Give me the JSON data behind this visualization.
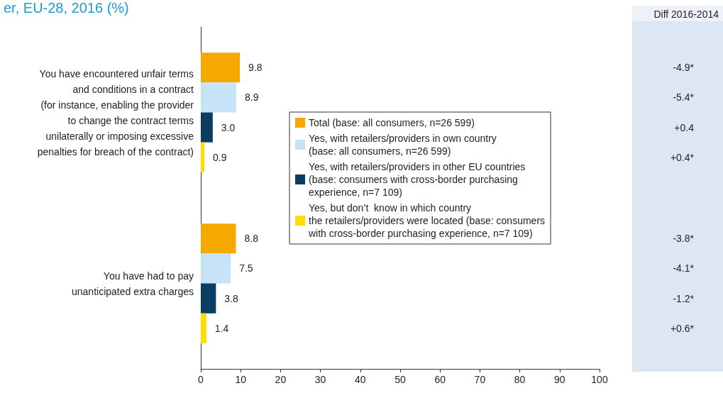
{
  "chart_data": {
    "type": "bar",
    "orientation": "horizontal",
    "title": "er, EU-28, 2016 (%)",
    "categories": [
      "You have encountered unfair terms\nand conditions in a contract\n(for instance, enabling the provider\nto change the contract terms\nunilaterally or imposing excessive\npenalties for breach of the contract)",
      "You have had to pay\nunanticipated extra charges"
    ],
    "series": [
      {
        "name": "Total (base: all consumers, n=26 599)",
        "color": "#f5a800",
        "values": [
          9.8,
          8.8
        ],
        "value_labels": [
          "9.8",
          "8.8"
        ]
      },
      {
        "name": "Yes, with retailers/providers in own country\n(base: all consumers, n=26 599)",
        "color": "#c6e3f7",
        "values": [
          8.9,
          7.5
        ],
        "value_labels": [
          "8.9",
          "7.5"
        ]
      },
      {
        "name": "Yes, with retailers/providers in other EU countries\n(base: consumers with cross-border purchasing\nexperience, n=7 109)",
        "color": "#0b3c61",
        "values": [
          3.0,
          3.8
        ],
        "value_labels": [
          "3.0",
          "3.8"
        ]
      },
      {
        "name": "Yes, but don’t  know in which country\nthe retailers/providers were located (base: consumers\nwith cross-border purchasing experience, n=7 109)",
        "color": "#ffdd00",
        "values": [
          0.9,
          1.4
        ],
        "value_labels": [
          "0.9",
          "1.4"
        ]
      }
    ],
    "xlim": [
      0,
      100
    ],
    "xticks": [
      0,
      10,
      20,
      30,
      40,
      50,
      60,
      70,
      80,
      90,
      100
    ],
    "legend": "right",
    "grid": false,
    "annotations": [
      "Diff 2016-2014",
      "-4.9*",
      "-5.4*",
      "+0.4",
      "+0.4*",
      "-3.8*",
      "-4.1*",
      "-1.2*",
      "+0.6*"
    ]
  }
}
